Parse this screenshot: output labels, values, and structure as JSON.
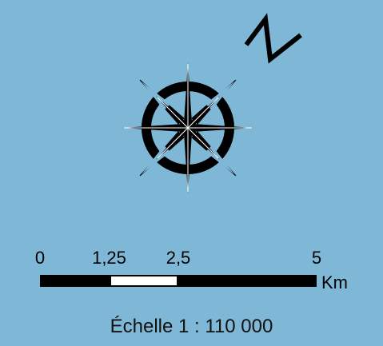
{
  "colors": {
    "background": "#7fb8d6",
    "ink": "#000000",
    "scale_light": "#ffffff"
  },
  "north_arrow": {
    "label": "N",
    "icon": "north-arrow-icon"
  },
  "compass": {
    "icon": "compass-rose-icon"
  },
  "scale_bar": {
    "ticks": [
      {
        "label": "0",
        "value": 0
      },
      {
        "label": "1,25",
        "value": 1.25
      },
      {
        "label": "2,5",
        "value": 2.5
      },
      {
        "label": "5",
        "value": 5
      }
    ],
    "max": 5,
    "segments": [
      {
        "from": 0,
        "to": 1.25,
        "color": "#000000"
      },
      {
        "from": 1.25,
        "to": 2.5,
        "color": "#ffffff"
      },
      {
        "from": 2.5,
        "to": 5,
        "color": "#000000"
      }
    ],
    "unit": "Km"
  },
  "scale_text": "Échelle 1 : 110 000"
}
